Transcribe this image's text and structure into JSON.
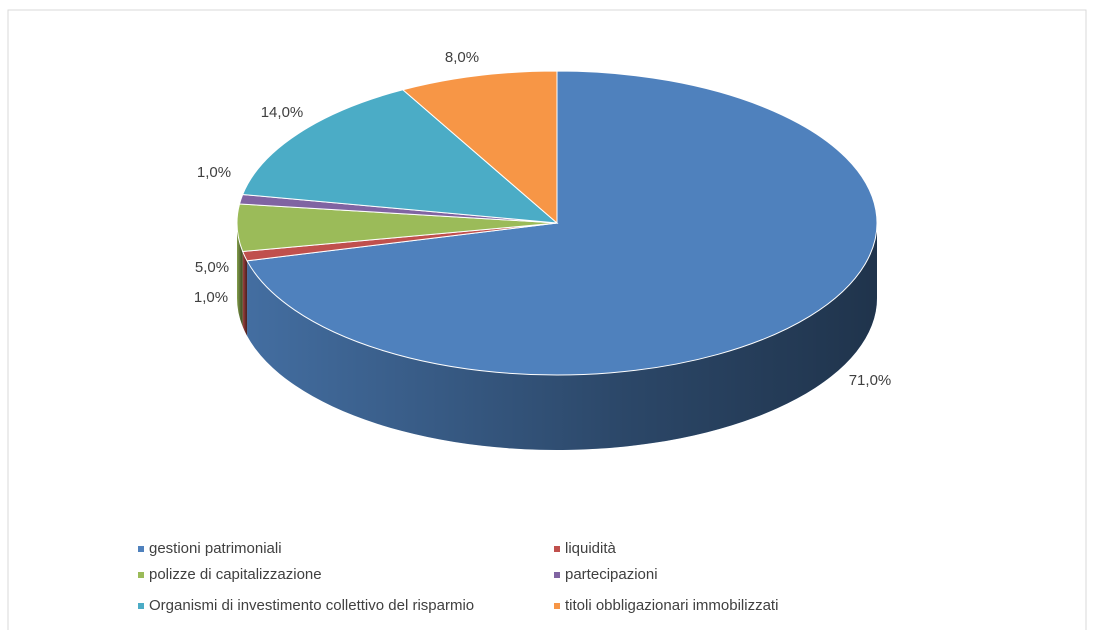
{
  "chart_data": {
    "type": "pie",
    "categories": [
      "gestioni patrimoniali",
      "liquidità",
      "polizze di capitalizzazione",
      "partecipazioni",
      "Organismi di investimento collettivo del risparmio",
      "titoli obbligazionari immobilizzati"
    ],
    "values": [
      71,
      1,
      5,
      1,
      14,
      8
    ],
    "value_labels": [
      "71,0%",
      "1,0%",
      "5,0%",
      "1,0%",
      "14,0%",
      "8,0%"
    ],
    "colors": [
      "#4f81bd",
      "#c0504d",
      "#9bbb59",
      "#8064a2",
      "#4bacc6",
      "#f79646"
    ],
    "legend": "bottom"
  }
}
